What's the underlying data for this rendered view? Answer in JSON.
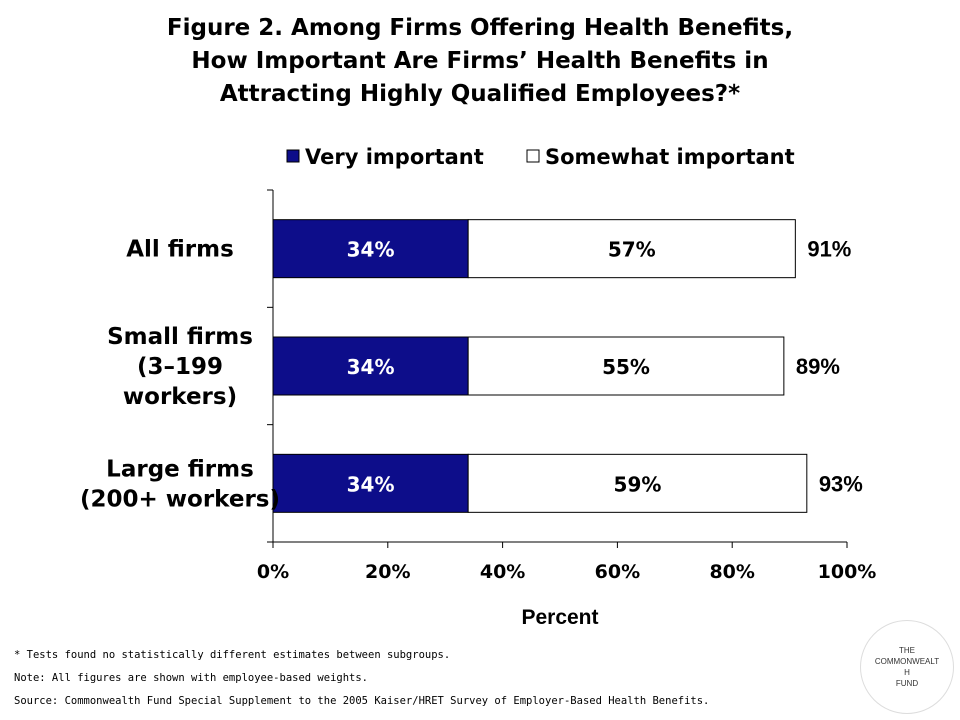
{
  "title_lines": [
    "Figure 2. Among Firms Offering Health Benefits,",
    "How Important Are Firms’ Health Benefits in",
    "Attracting Highly Qualified Employees?*"
  ],
  "notes": [
    "* Tests found no statistically different estimates between subgroups.",
    "Note: All figures are shown with employee-based weights.",
    "Source: Commonwealth Fund Special Supplement to the 2005 Kaiser/HRET Survey of Employer-Based Health Benefits."
  ],
  "logo": {
    "lines": [
      "THE",
      "COMMONWEALT",
      "H",
      "FUND"
    ]
  },
  "colors": {
    "very_important": "#0d0d8a",
    "somewhat_important": "#ffffff",
    "outline": "#000000"
  },
  "chart_data": {
    "type": "bar",
    "orientation": "horizontal",
    "stacked": true,
    "categories": [
      [
        "All firms"
      ],
      [
        "Small firms",
        "(3–199",
        "workers)"
      ],
      [
        "Large firms",
        "(200+ workers)"
      ]
    ],
    "series": [
      {
        "name": "Very important",
        "values": [
          34,
          34,
          34
        ],
        "labels": [
          "34%",
          "34%",
          "34%"
        ]
      },
      {
        "name": "Somewhat important",
        "values": [
          57,
          55,
          59
        ],
        "labels": [
          "57%",
          "55%",
          "59%"
        ]
      }
    ],
    "totals": [
      "91%",
      "89%",
      "93%"
    ],
    "xlabel": "Percent",
    "xlim": [
      0,
      100
    ],
    "xticks": [
      "0%",
      "20%",
      "40%",
      "60%",
      "80%",
      "100%"
    ],
    "xtick_values": [
      0,
      20,
      40,
      60,
      80,
      100
    ],
    "legend": "top",
    "grid": false
  }
}
